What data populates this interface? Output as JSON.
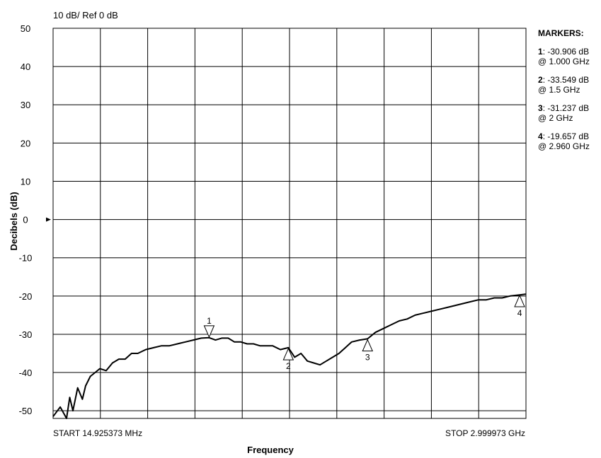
{
  "chart_data": {
    "type": "line",
    "title": "10 dB/ Ref 0 dB",
    "xlabel": "Frequency",
    "ylabel": "Decibels (dB)",
    "start_label": "START 14.925373 MHz",
    "stop_label": "STOP 2.999973 GHz",
    "x_unit": "GHz",
    "xlim": [
      0.014925373,
      2.999973
    ],
    "ylim": [
      -52,
      50
    ],
    "yticks": [
      50,
      40,
      30,
      20,
      10,
      0,
      -10,
      -20,
      -30,
      -40,
      -50
    ],
    "ytick_labels": [
      "50",
      "40",
      "30",
      "20",
      "10",
      "0",
      "-10",
      "-20",
      "-30",
      "-40",
      "-50"
    ],
    "reference_level": 0,
    "grid": true,
    "x_divisions": 10,
    "series": [
      {
        "x": [
          0.015,
          0.06,
          0.1,
          0.12,
          0.14,
          0.17,
          0.2,
          0.22,
          0.25,
          0.28,
          0.31,
          0.35,
          0.39,
          0.43,
          0.47,
          0.51,
          0.55,
          0.6,
          0.65,
          0.7,
          0.75,
          0.8,
          0.85,
          0.9,
          0.95,
          1.0,
          1.04,
          1.08,
          1.12,
          1.16,
          1.2,
          1.24,
          1.28,
          1.32,
          1.36,
          1.4,
          1.45,
          1.5,
          1.54,
          1.58,
          1.62,
          1.66,
          1.7,
          1.74,
          1.78,
          1.82,
          1.86,
          1.9,
          1.95,
          2.0,
          2.05,
          2.1,
          2.15,
          2.2,
          2.25,
          2.3,
          2.35,
          2.4,
          2.45,
          2.5,
          2.55,
          2.6,
          2.65,
          2.7,
          2.75,
          2.8,
          2.85,
          2.9,
          2.96,
          3.0
        ],
        "y": [
          -51.5,
          -49,
          -52,
          -46.5,
          -50,
          -44,
          -47,
          -43.5,
          -41,
          -40,
          -39,
          -39.5,
          -37.5,
          -36.5,
          -36.5,
          -35,
          -35,
          -34,
          -33.5,
          -33,
          -33,
          -32.5,
          -32,
          -31.5,
          -31,
          -30.9,
          -31.5,
          -31,
          -31,
          -32,
          -32,
          -32.5,
          -32.5,
          -33,
          -33,
          -33,
          -34,
          -33.5,
          -36,
          -35,
          -37,
          -37.5,
          -38,
          -37,
          -36,
          -35,
          -33.5,
          -32,
          -31.5,
          -31.2,
          -29.5,
          -28.5,
          -27.5,
          -26.5,
          -26,
          -25,
          -24.5,
          -24,
          -23.5,
          -23,
          -22.5,
          -22,
          -21.5,
          -21,
          -21,
          -20.5,
          -20.5,
          -20,
          -19.7,
          -19.5
        ]
      }
    ],
    "markers": [
      {
        "label": "1",
        "x": 1.0,
        "y": -30.906,
        "value_text": "-30.906 dB",
        "freq_text": "@ 1.000 GHz"
      },
      {
        "label": "2",
        "x": 1.5,
        "y": -33.549,
        "value_text": "-33.549 dB",
        "freq_text": "@ 1.5 GHz"
      },
      {
        "label": "3",
        "x": 2.0,
        "y": -31.237,
        "value_text": "-31.237 dB",
        "freq_text": "@ 2 GHz"
      },
      {
        "label": "4",
        "x": 2.96,
        "y": -19.657,
        "value_text": "-19.657 dB",
        "freq_text": "@ 2.960 GHz"
      }
    ]
  },
  "markers_panel": {
    "title": "MARKERS:",
    "entries": [
      {
        "num": "1",
        "value": ": -30.906 dB",
        "freq": "@ 1.000 GHz"
      },
      {
        "num": "2",
        "value": ": -33.549 dB",
        "freq": "@ 1.5 GHz"
      },
      {
        "num": "3",
        "value": ": -31.237 dB",
        "freq": "@ 2 GHz"
      },
      {
        "num": "4",
        "value": ": -19.657 dB",
        "freq": "@ 2.960 GHz"
      }
    ]
  },
  "colors": {
    "trace": "#000000",
    "grid": "#000000",
    "background": "#ffffff"
  }
}
